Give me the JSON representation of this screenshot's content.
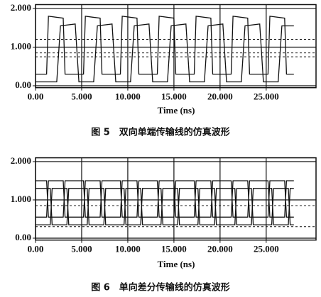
{
  "chart_data": [
    {
      "type": "line",
      "xlabel": "Time (ns)",
      "caption": "图 5　双向单端传输线的仿真波形",
      "xlim": [
        0,
        30.4
      ],
      "ylim": [
        -0.05,
        2.1
      ],
      "grid": true,
      "xticks": [
        {
          "value": 0,
          "label": "0.00"
        },
        {
          "value": 5,
          "label": "5.000"
        },
        {
          "value": 10,
          "label": "10.000"
        },
        {
          "value": 15,
          "label": "15.000"
        },
        {
          "value": 20,
          "label": "20.000"
        },
        {
          "value": 25,
          "label": "25.000"
        }
      ],
      "yticks": [
        {
          "value": 0,
          "label": "0.00"
        },
        {
          "value": 1,
          "label": "1.000"
        },
        {
          "value": 2,
          "label": "2.000"
        }
      ],
      "reference_lines": [
        {
          "value": 1.2,
          "dashed": true
        },
        {
          "value": 0.85,
          "dashed": true
        },
        {
          "value": 0.75,
          "dashed": true
        }
      ],
      "series": [
        {
          "color": "#111",
          "x": [
            0,
            1.2,
            1.4,
            3.0,
            3.2,
            5.2,
            5.4,
            7.0,
            7.2,
            9.2,
            9.4,
            11.0,
            11.2,
            13.2,
            13.4,
            15.0,
            15.2,
            17.2,
            17.4,
            19.0,
            19.2,
            21.2,
            21.4,
            23.0,
            23.2,
            25.2,
            25.4,
            27.0,
            27.2,
            28
          ],
          "values": [
            0.3,
            0.3,
            1.8,
            1.75,
            0.3,
            0.3,
            1.8,
            1.75,
            0.3,
            0.3,
            1.8,
            1.75,
            0.3,
            0.3,
            1.8,
            1.75,
            0.3,
            0.3,
            1.8,
            1.75,
            0.3,
            0.3,
            1.8,
            1.75,
            0.3,
            0.3,
            1.8,
            1.75,
            0.3,
            0.3
          ]
        },
        {
          "color": "#111",
          "x": [
            0,
            2.3,
            2.7,
            4.3,
            4.7,
            6.3,
            6.7,
            8.3,
            8.7,
            10.3,
            10.7,
            12.3,
            12.7,
            14.3,
            14.7,
            16.3,
            16.7,
            18.3,
            18.7,
            20.3,
            20.7,
            22.3,
            22.7,
            24.3,
            24.7,
            26.3,
            26.7,
            28
          ],
          "values": [
            0.1,
            0.1,
            1.55,
            1.6,
            0.1,
            0.1,
            1.55,
            1.6,
            0.1,
            0.1,
            1.55,
            1.6,
            0.1,
            0.1,
            1.55,
            1.6,
            0.1,
            0.1,
            1.55,
            1.6,
            0.1,
            0.1,
            1.55,
            1.6,
            0.1,
            0.1,
            1.55,
            1.55
          ]
        }
      ]
    },
    {
      "type": "line",
      "xlabel": "Time (ns)",
      "caption": "图 6　单向差分传输线的仿真波形",
      "xlim": [
        0,
        30.4
      ],
      "ylim": [
        -0.05,
        2.1
      ],
      "grid": true,
      "xticks": [
        {
          "value": 0,
          "label": "0.00"
        },
        {
          "value": 5,
          "label": "5.000"
        },
        {
          "value": 10,
          "label": "10.000"
        },
        {
          "value": 15,
          "label": "15.000"
        },
        {
          "value": 20,
          "label": "20.000"
        },
        {
          "value": 25,
          "label": "25.000"
        }
      ],
      "yticks": [
        {
          "value": 0,
          "label": "0.00"
        },
        {
          "value": 1,
          "label": "1.000"
        },
        {
          "value": 2,
          "label": "2.000"
        }
      ],
      "reference_lines": [
        {
          "value": 0.85,
          "dashed": true
        },
        {
          "value": 0.3,
          "dashed": true
        }
      ],
      "series": [
        {
          "color": "#111",
          "x": [
            0,
            1.2,
            1.4,
            3.0,
            3.2,
            5.2,
            5.4,
            7.0,
            7.2,
            9.2,
            9.4,
            11.0,
            11.2,
            13.2,
            13.4,
            15.0,
            15.2,
            17.2,
            17.4,
            19.0,
            19.2,
            21.2,
            21.4,
            23.0,
            23.2,
            25.2,
            25.4,
            27.0,
            27.2,
            28
          ],
          "values": [
            0.55,
            0.55,
            1.5,
            1.5,
            0.55,
            0.55,
            1.5,
            1.5,
            0.55,
            0.55,
            1.5,
            1.5,
            0.55,
            0.55,
            1.5,
            1.5,
            0.55,
            0.55,
            1.5,
            1.5,
            0.55,
            0.55,
            1.5,
            1.5,
            0.55,
            0.55,
            1.5,
            1.5,
            0.55,
            0.55
          ]
        },
        {
          "color": "#111",
          "x": [
            0,
            1.2,
            1.4,
            3.0,
            3.2,
            5.2,
            5.4,
            7.0,
            7.2,
            9.2,
            9.4,
            11.0,
            11.2,
            13.2,
            13.4,
            15.0,
            15.2,
            17.2,
            17.4,
            19.0,
            19.2,
            21.2,
            21.4,
            23.0,
            23.2,
            25.2,
            25.4,
            27.0,
            27.2,
            28
          ],
          "values": [
            1.5,
            1.5,
            0.55,
            0.55,
            1.5,
            1.5,
            0.55,
            0.55,
            1.5,
            1.5,
            0.55,
            0.55,
            1.5,
            1.5,
            0.55,
            0.55,
            1.5,
            1.5,
            0.55,
            0.55,
            1.5,
            1.5,
            0.55,
            0.55,
            1.5,
            1.5,
            0.55,
            0.55,
            1.5,
            1.5
          ]
        },
        {
          "color": "#111",
          "x": [
            0,
            1.6,
            1.8,
            3.4,
            3.6,
            5.6,
            5.8,
            7.4,
            7.6,
            9.6,
            9.8,
            11.4,
            11.6,
            13.6,
            13.8,
            15.4,
            15.6,
            17.6,
            17.8,
            19.4,
            19.6,
            21.6,
            21.8,
            23.4,
            23.6,
            25.6,
            25.8,
            27.4,
            27.6,
            28
          ],
          "values": [
            0.35,
            0.35,
            1.3,
            1.3,
            0.35,
            0.35,
            1.3,
            1.3,
            0.35,
            0.35,
            1.3,
            1.3,
            0.35,
            0.35,
            1.3,
            1.3,
            0.35,
            0.35,
            1.3,
            1.3,
            0.35,
            0.35,
            1.3,
            1.3,
            0.35,
            0.35,
            1.3,
            1.3,
            0.35,
            0.35
          ]
        },
        {
          "color": "#111",
          "x": [
            0,
            1.6,
            1.8,
            3.4,
            3.6,
            5.6,
            5.8,
            7.4,
            7.6,
            9.6,
            9.8,
            11.4,
            11.6,
            13.6,
            13.8,
            15.4,
            15.6,
            17.6,
            17.8,
            19.4,
            19.6,
            21.6,
            21.8,
            23.4,
            23.6,
            25.6,
            25.8,
            27.4,
            27.6,
            28
          ],
          "values": [
            1.3,
            1.3,
            0.35,
            0.35,
            1.3,
            1.3,
            0.35,
            0.35,
            1.3,
            1.3,
            0.35,
            0.35,
            1.3,
            1.3,
            0.35,
            0.35,
            1.3,
            1.3,
            0.35,
            0.35,
            1.3,
            1.3,
            0.35,
            0.35,
            1.3,
            1.3,
            0.35,
            0.35,
            1.3,
            1.3
          ]
        }
      ]
    }
  ]
}
